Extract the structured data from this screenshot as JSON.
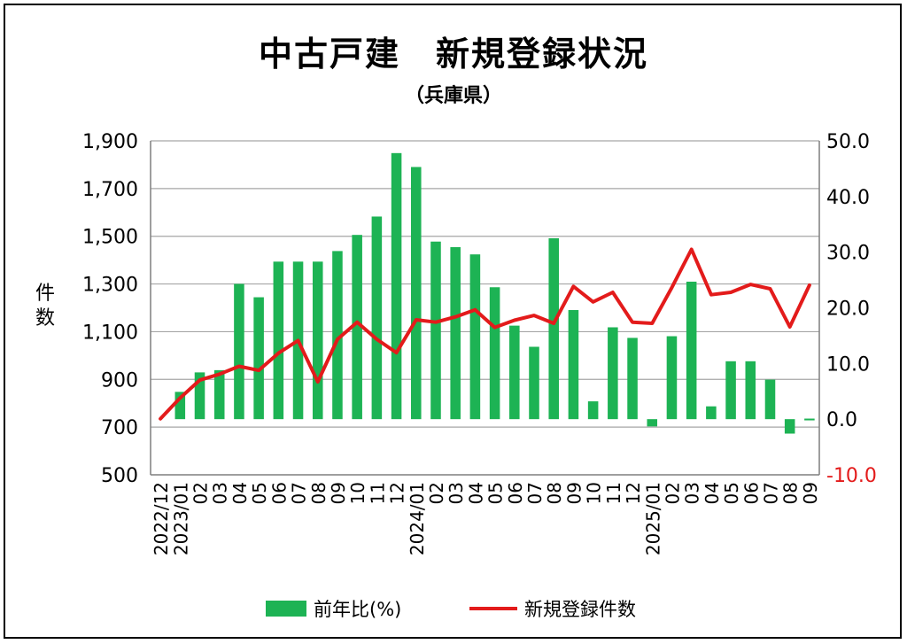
{
  "chart_data": {
    "type": "bar+line",
    "title": "中古戸建　新規登録状況",
    "subtitle": "（兵庫県）",
    "ylabel_left": "件数",
    "y_left_range": [
      500,
      1900
    ],
    "y_left_ticks": [
      "1,900",
      "1,700",
      "1,500",
      "1,300",
      "1,100",
      "900",
      "700",
      "500"
    ],
    "y_right_range": [
      -10.0,
      50.0
    ],
    "y_right_ticks": [
      "50.0",
      "40.0",
      "30.0",
      "20.0",
      "10.0",
      "0.0",
      "-10.0"
    ],
    "x_tick_labels": [
      "2022/12",
      "2023/01",
      "02",
      "03",
      "04",
      "05",
      "06",
      "07",
      "08",
      "09",
      "10",
      "11",
      "12",
      "2024/01",
      "02",
      "03",
      "04",
      "05",
      "06",
      "07",
      "08",
      "09",
      "10",
      "11",
      "12",
      "2025/01",
      "02",
      "03",
      "04",
      "05",
      "06",
      "07",
      "08",
      "09"
    ],
    "grid": true,
    "legend_position": "bottom",
    "series": [
      {
        "name": "前年比(%)",
        "kind": "bar",
        "axis": "right",
        "color": "#1db354",
        "values": [
          null,
          4.9,
          8.4,
          8.8,
          24.3,
          21.9,
          28.3,
          28.3,
          28.3,
          30.2,
          33.1,
          36.4,
          47.8,
          45.3,
          31.9,
          30.9,
          29.6,
          23.7,
          16.8,
          13.0,
          32.5,
          19.6,
          3.2,
          16.5,
          14.6,
          -1.3,
          14.9,
          24.7,
          2.3,
          10.4,
          10.4,
          7.1,
          -2.6,
          0.1
        ]
      },
      {
        "name": "新規登録件数",
        "kind": "line",
        "axis": "left",
        "color": "#e31b1b",
        "values": [
          735,
          822,
          897,
          922,
          955,
          938,
          1010,
          1063,
          890,
          1068,
          1140,
          1068,
          1012,
          1150,
          1140,
          1162,
          1192,
          1118,
          1148,
          1168,
          1135,
          1290,
          1225,
          1265,
          1140,
          1135,
          1285,
          1445,
          1255,
          1265,
          1298,
          1280,
          1120,
          1295
        ]
      }
    ]
  },
  "colors": {
    "bar": "#1db354",
    "line": "#e31b1b",
    "negative_tick": "#e31b1b",
    "grid": "#a6a6a6"
  }
}
